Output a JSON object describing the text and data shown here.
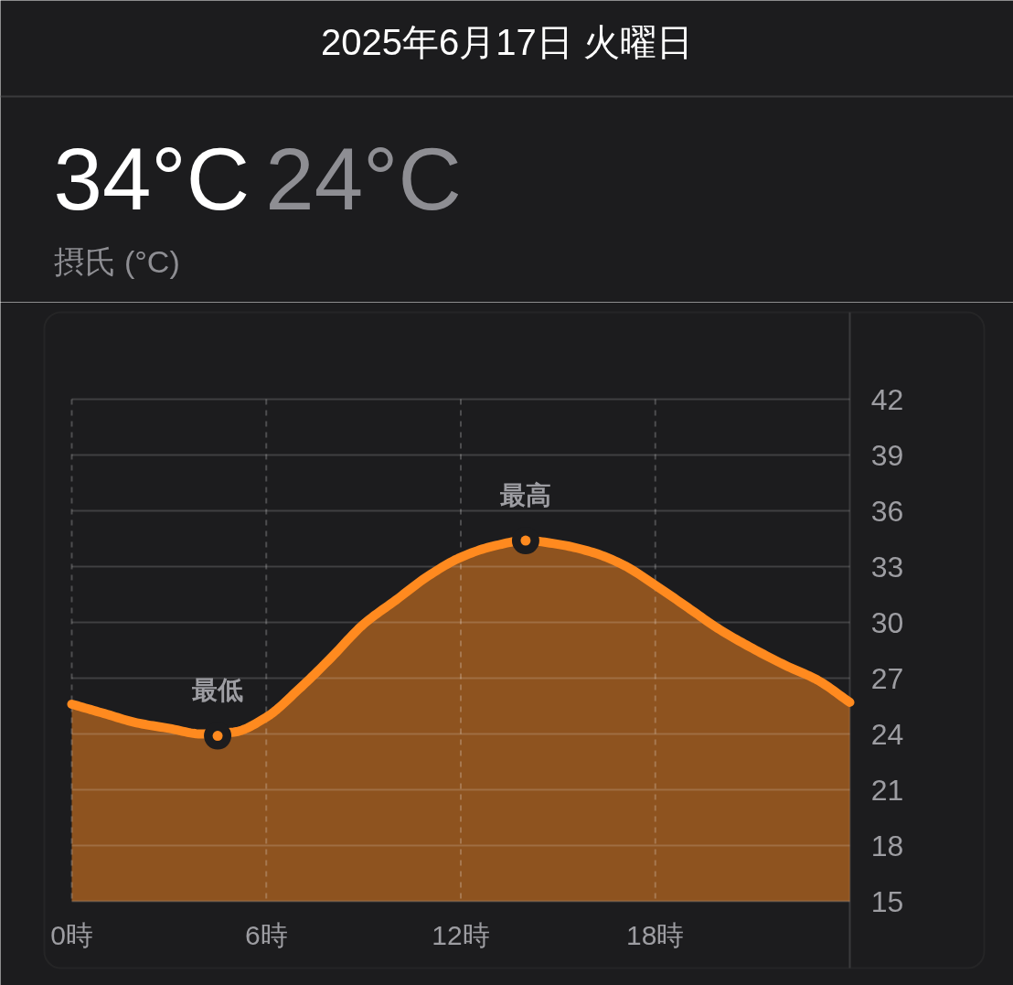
{
  "chart_data": {
    "type": "area",
    "title": "2025年6月17日 火曜日",
    "annotations": [
      "34°C",
      "24°C",
      "摂氏 (°C)",
      {
        "text": "最高",
        "x": 14,
        "y": 34.4
      },
      {
        "text": "最低",
        "x": 4.5,
        "y": 23.9
      }
    ],
    "x": [
      0,
      1,
      2,
      3,
      4,
      5,
      6,
      7,
      8,
      9,
      10,
      11,
      12,
      13,
      14,
      15,
      16,
      17,
      18,
      19,
      20,
      21,
      22,
      23,
      24
    ],
    "series": [
      {
        "color": "#ff8a1f",
        "values": [
          25.6,
          25.1,
          24.6,
          24.3,
          24.0,
          24.1,
          24.9,
          26.4,
          28.1,
          29.9,
          31.2,
          32.5,
          33.5,
          34.1,
          34.4,
          34.2,
          33.8,
          33.1,
          32.0,
          30.8,
          29.6,
          28.6,
          27.7,
          26.9,
          25.7
        ]
      }
    ],
    "xlim": [
      0,
      24
    ],
    "xticks": [
      {
        "value": 0,
        "label": "0時"
      },
      {
        "value": 6,
        "label": "6時"
      },
      {
        "value": 12,
        "label": "12時"
      },
      {
        "value": 18,
        "label": "18時"
      }
    ],
    "ylim": [
      15,
      42
    ],
    "yticks": [
      15,
      18,
      21,
      24,
      27,
      30,
      33,
      36,
      39,
      42
    ],
    "grid": true
  }
}
